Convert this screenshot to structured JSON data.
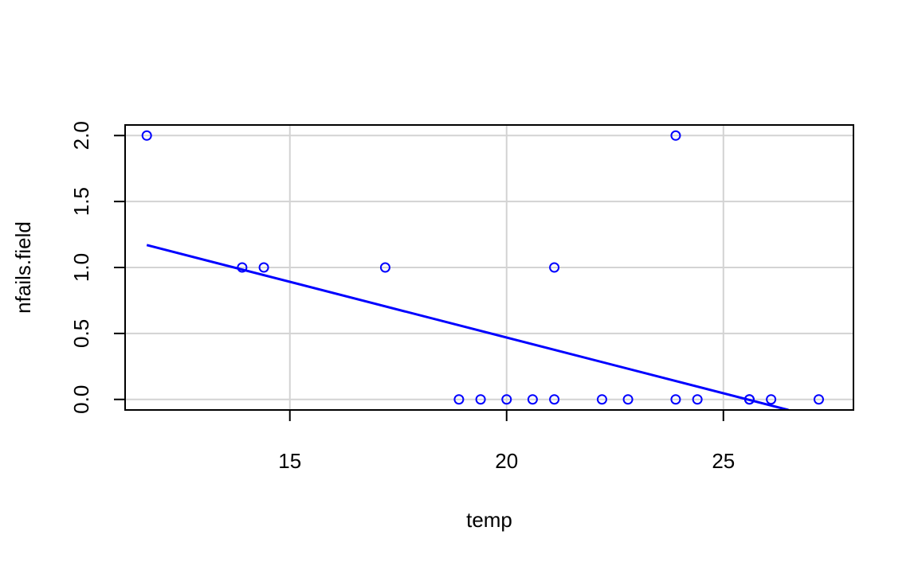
{
  "chart_data": {
    "type": "scatter",
    "title": "",
    "xlabel": "temp",
    "ylabel": "nfails.field",
    "xlim": [
      11.2,
      28.0
    ],
    "ylim": [
      -0.08,
      2.08
    ],
    "x_ticks": [
      15,
      20,
      25
    ],
    "x_tick_labels": [
      "15",
      "20",
      "25"
    ],
    "y_ticks": [
      0.0,
      0.5,
      1.0,
      1.5,
      2.0
    ],
    "y_tick_labels": [
      "0.0",
      "0.5",
      "1.0",
      "1.5",
      "2.0"
    ],
    "grid": true,
    "grid_color": "#d3d3d3",
    "point_color": "#0000ff",
    "line_color": "#0000ff",
    "series": [
      {
        "type": "scatter",
        "x": [
          11.7,
          13.9,
          14.4,
          17.2,
          18.9,
          19.4,
          20.0,
          20.6,
          21.1,
          21.1,
          22.2,
          22.8,
          23.9,
          23.9,
          24.4,
          25.6,
          25.6,
          26.1,
          27.2
        ],
        "y": [
          2,
          1,
          1,
          1,
          0,
          0,
          0,
          0,
          0,
          1,
          0,
          0,
          0,
          2,
          0,
          0,
          0,
          0,
          0
        ]
      },
      {
        "type": "line",
        "x": [
          11.7,
          26.5
        ],
        "y": [
          1.17,
          -0.08
        ]
      }
    ]
  }
}
